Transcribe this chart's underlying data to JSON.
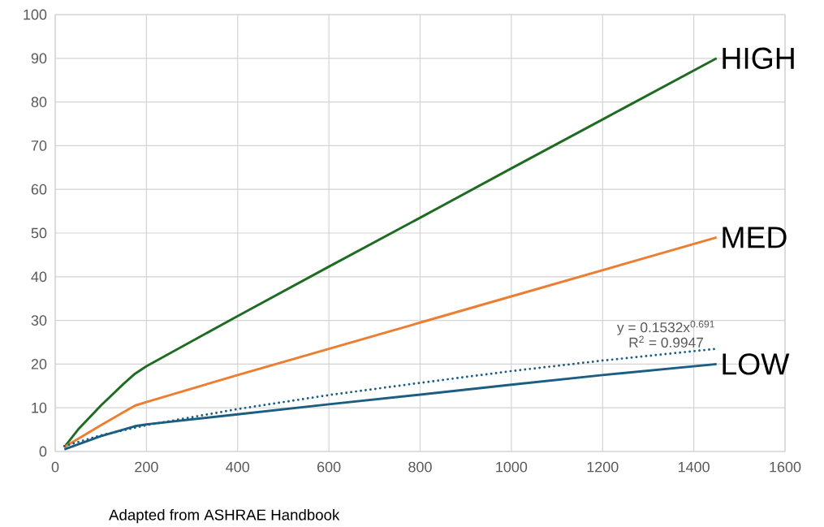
{
  "chart_data": {
    "type": "line",
    "xlim": [
      0,
      1600
    ],
    "ylim": [
      0,
      100
    ],
    "xticks": [
      0,
      200,
      400,
      600,
      800,
      1000,
      1200,
      1400,
      1600
    ],
    "yticks": [
      0,
      10,
      20,
      30,
      40,
      50,
      60,
      70,
      80,
      90,
      100
    ],
    "grid": true,
    "line_style": "solid",
    "series": [
      {
        "name": "HIGH",
        "color": "#1e6b22",
        "x": [
          20,
          50,
          100,
          150,
          175,
          200,
          400,
          600,
          800,
          1000,
          1200,
          1450
        ],
        "values": [
          1,
          5,
          10.5,
          15.5,
          17.8,
          19.5,
          31,
          42.3,
          53.5,
          64.8,
          76,
          90
        ]
      },
      {
        "name": "MED",
        "color": "#ed7d31",
        "x": [
          20,
          100,
          150,
          175,
          200,
          400,
          800,
          1000,
          1450
        ],
        "values": [
          1,
          6,
          9,
          10.5,
          11.3,
          17.5,
          29.5,
          35.5,
          49
        ]
      },
      {
        "name": "LOW",
        "color": "#1b5e82",
        "x": [
          20,
          100,
          175,
          200,
          400,
          600,
          800,
          1000,
          1200,
          1450
        ],
        "values": [
          0.5,
          3.5,
          5.8,
          6.2,
          8.5,
          10.8,
          13,
          15.3,
          17.5,
          20
        ]
      },
      {
        "color": "#1b5e82",
        "line_style": "dotted",
        "x": [
          20,
          100,
          200,
          400,
          600,
          800,
          1000,
          1200,
          1450
        ],
        "values": [
          1.2,
          3.7,
          6,
          9.7,
          12.9,
          15.7,
          18.4,
          20.8,
          23.5
        ]
      }
    ],
    "annotations": [
      "y = 0.1532x$^{0.691}$",
      "R$^{2}$ = 0.9947",
      "Adapted from ASHRAE Handbook"
    ]
  }
}
